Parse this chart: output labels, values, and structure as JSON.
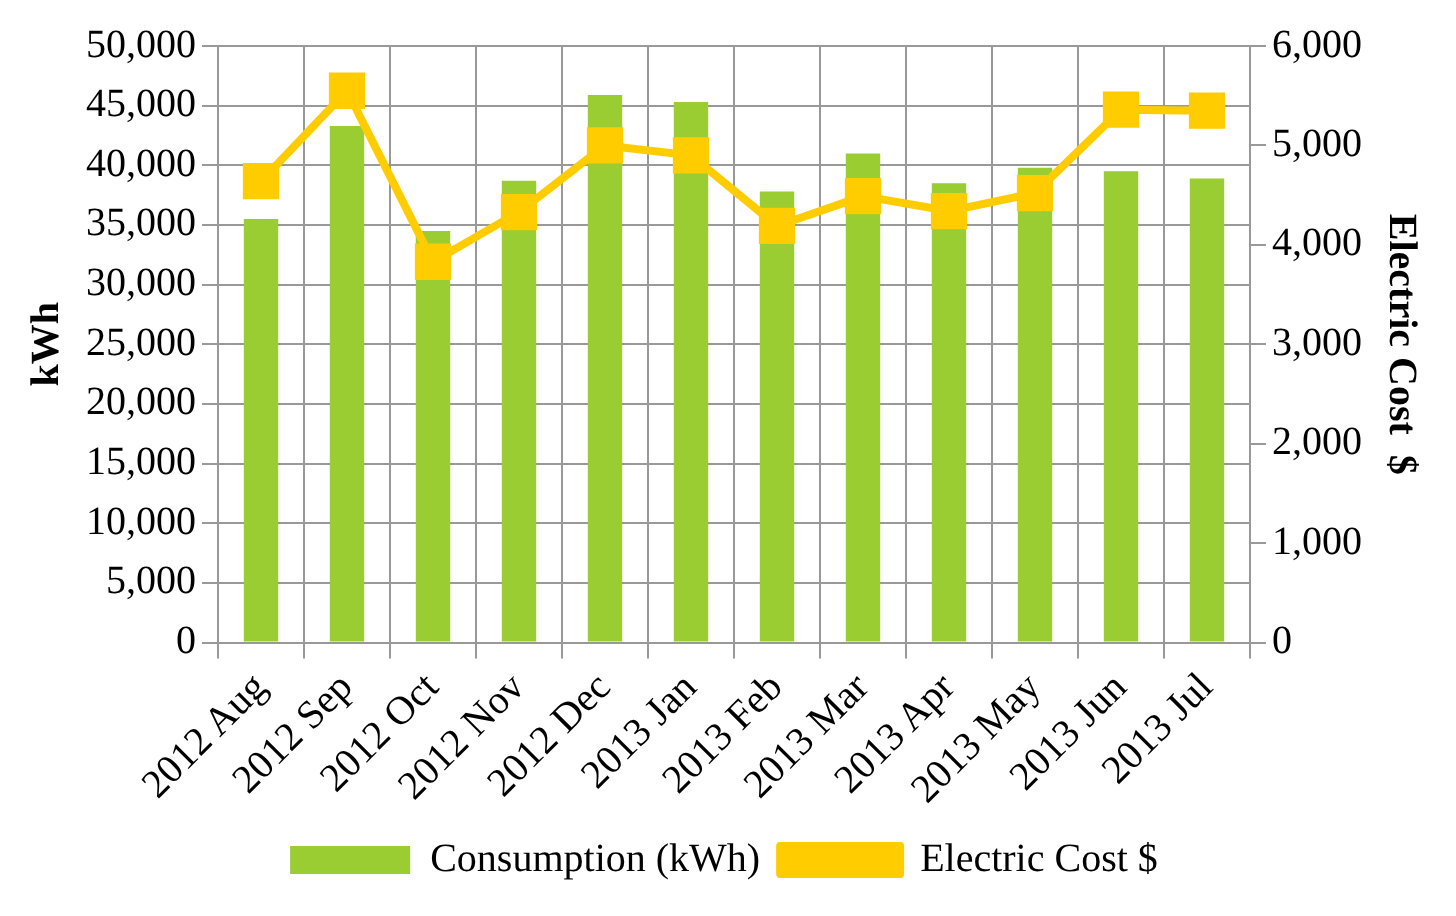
{
  "chart_data": {
    "type": "bar",
    "categories": [
      "2012 Aug",
      "2012 Sep",
      "2012 Oct",
      "2012 Nov",
      "2012 Dec",
      "2013 Jan",
      "2013 Feb",
      "2013 Mar",
      "2013 Apr",
      "2013 May",
      "2013 Jun",
      "2013 Jul"
    ],
    "series": [
      {
        "name": "Consumption (kWh)",
        "color": "#9acd32",
        "values": [
          35500,
          43300,
          34500,
          38700,
          45900,
          45300,
          37800,
          41000,
          38500,
          39800,
          39500,
          38900
        ]
      },
      {
        "name": "Electric Cost $",
        "type": "line",
        "axis": "y2",
        "color": "#ffcc00",
        "values": [
          4640,
          5550,
          3830,
          4330,
          5000,
          4900,
          4190,
          4490,
          4340,
          4520,
          5360,
          5350
        ]
      }
    ],
    "ylabel": "kWh",
    "y2label": "Electric Cost  $",
    "ylim": [
      0,
      50000
    ],
    "yticks": [
      0,
      {
        "value": 5000,
        "label": "5,000"
      },
      {
        "value": 10000,
        "label": "10,000"
      },
      {
        "value": 15000,
        "label": "15,000"
      },
      {
        "value": 20000,
        "label": "20,000"
      },
      {
        "value": 25000,
        "label": "25,000"
      },
      {
        "value": 30000,
        "label": "30,000"
      },
      {
        "value": 35000,
        "label": "35,000"
      },
      {
        "value": 40000,
        "label": "40,000"
      },
      {
        "value": 45000,
        "label": "45,000"
      },
      {
        "value": 50000,
        "label": "50,000"
      }
    ],
    "y2lim": [
      0,
      6000
    ],
    "y2ticks": [
      0,
      {
        "value": 1000,
        "label": "1,000"
      },
      {
        "value": 2000,
        "label": "2,000"
      },
      {
        "value": 3000,
        "label": "3,000"
      },
      {
        "value": 4000,
        "label": "4,000"
      },
      {
        "value": 5000,
        "label": "5,000"
      },
      {
        "value": 6000,
        "label": "6,000"
      }
    ],
    "grid": true,
    "legend": "bottom",
    "marker": "square",
    "line_style": "solid"
  }
}
